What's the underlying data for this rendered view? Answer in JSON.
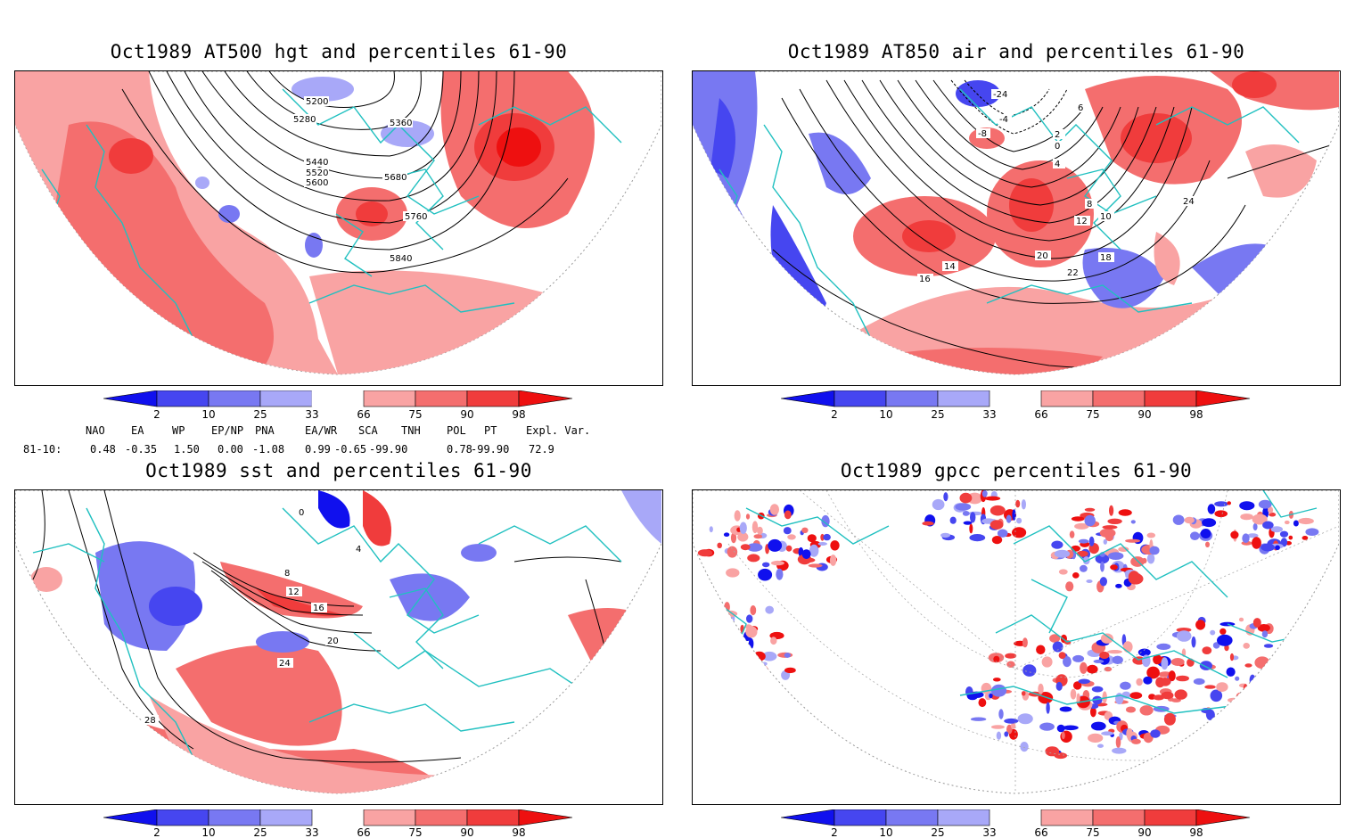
{
  "panels": [
    {
      "id": "p1",
      "title": "Oct1989 AT500 hgt and percentiles 61-90",
      "contour_labels": [
        "5200",
        "5280",
        "5360",
        "5440",
        "5520",
        "5600",
        "5680",
        "5760",
        "5840"
      ]
    },
    {
      "id": "p2",
      "title": "Oct1989 AT850 air and percentiles 61-90",
      "contour_labels": [
        "-24",
        "-8",
        "-4",
        "0",
        "2",
        "4",
        "6",
        "8",
        "10",
        "12",
        "14",
        "16",
        "18",
        "20",
        "22",
        "24"
      ]
    },
    {
      "id": "p3",
      "title": "Oct1989 sst and percentiles 61-90",
      "contour_labels": [
        "0",
        "4",
        "8",
        "12",
        "16",
        "20",
        "24",
        "28"
      ]
    },
    {
      "id": "p4",
      "title": "Oct1989 gpcc percentiles 61-90",
      "contour_labels": []
    }
  ],
  "colorbar": {
    "ticks": [
      "2",
      "10",
      "25",
      "33",
      "66",
      "75",
      "90",
      "98"
    ],
    "colors": {
      "blue_dark": "#1010ee",
      "blue_mid": "#4646f0",
      "blue_light": "#7878f2",
      "blue_pale": "#a8a8f8",
      "red_pale": "#f9a3a3",
      "red_light": "#f46e6e",
      "red_mid": "#f03c3c",
      "red_dark": "#ee1010",
      "coast": "#20c0c0"
    }
  },
  "indices": {
    "headers": [
      "NAO",
      "EA",
      "WP",
      "EP/NP",
      "PNA",
      "EA/WR",
      "SCA",
      "TNH",
      "POL",
      "PT",
      "Expl. Var."
    ],
    "row_label": "81-10:",
    "values": [
      "0.48",
      "-0.35",
      "1.50",
      "0.00",
      "-1.08",
      "0.99",
      "-0.65",
      "-99.90",
      "0.78",
      "-99.90",
      "72.9"
    ]
  }
}
